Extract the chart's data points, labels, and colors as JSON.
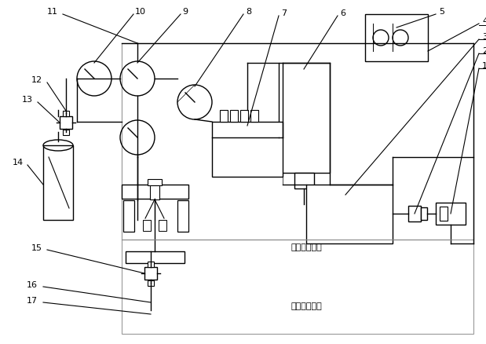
{
  "bg": "#ffffff",
  "lc": "#000000",
  "gc": "#aaaaaa",
  "figsize": [
    6.19,
    4.38
  ],
  "dpi": 100,
  "text1": "第一回油管路",
  "text2": "第二回油管路"
}
